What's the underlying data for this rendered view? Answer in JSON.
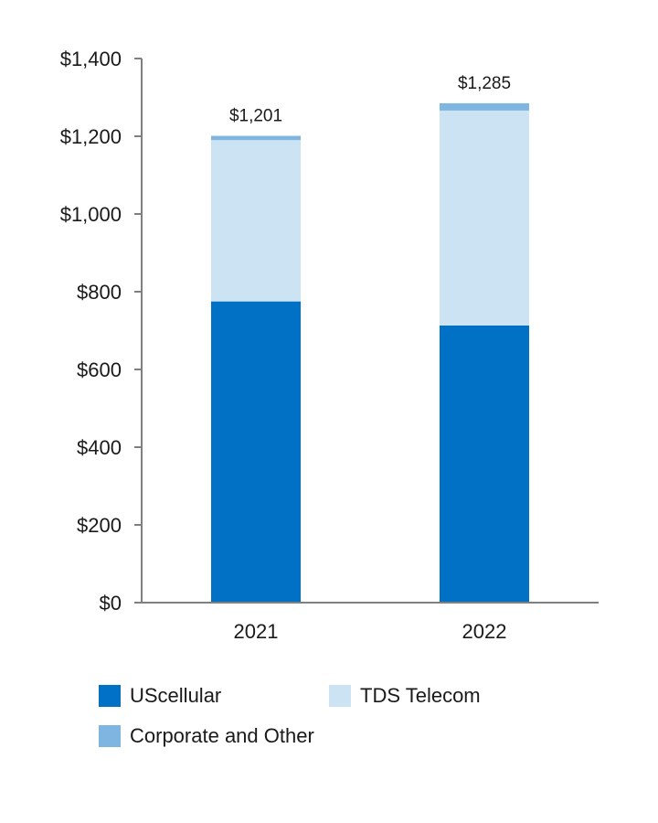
{
  "chart_data": {
    "type": "bar",
    "stacked": true,
    "categories": [
      "2021",
      "2022"
    ],
    "series": [
      {
        "name": "UScellular",
        "values": [
          775,
          713
        ],
        "color": "#0071c5"
      },
      {
        "name": "TDS Telecom",
        "values": [
          415,
          553
        ],
        "color": "#cce3f4"
      },
      {
        "name": "Corporate and Other",
        "values": [
          11,
          19
        ],
        "color": "#7fb6e1"
      }
    ],
    "totals": [
      "$1,201",
      "$1,285"
    ],
    "y_ticks": [
      "$0",
      "$200",
      "$400",
      "$600",
      "$800",
      "$1,000",
      "$1,200",
      "$1,400"
    ],
    "ylim": [
      0,
      1400
    ],
    "title": "",
    "xlabel": "",
    "ylabel": "",
    "grid": false,
    "legend_position": "bottom"
  },
  "legend": [
    {
      "label": "UScellular",
      "color": "#0071c5"
    },
    {
      "label": "TDS Telecom",
      "color": "#cce3f4"
    },
    {
      "label": "Corporate and Other",
      "color": "#7fb6e1"
    }
  ]
}
